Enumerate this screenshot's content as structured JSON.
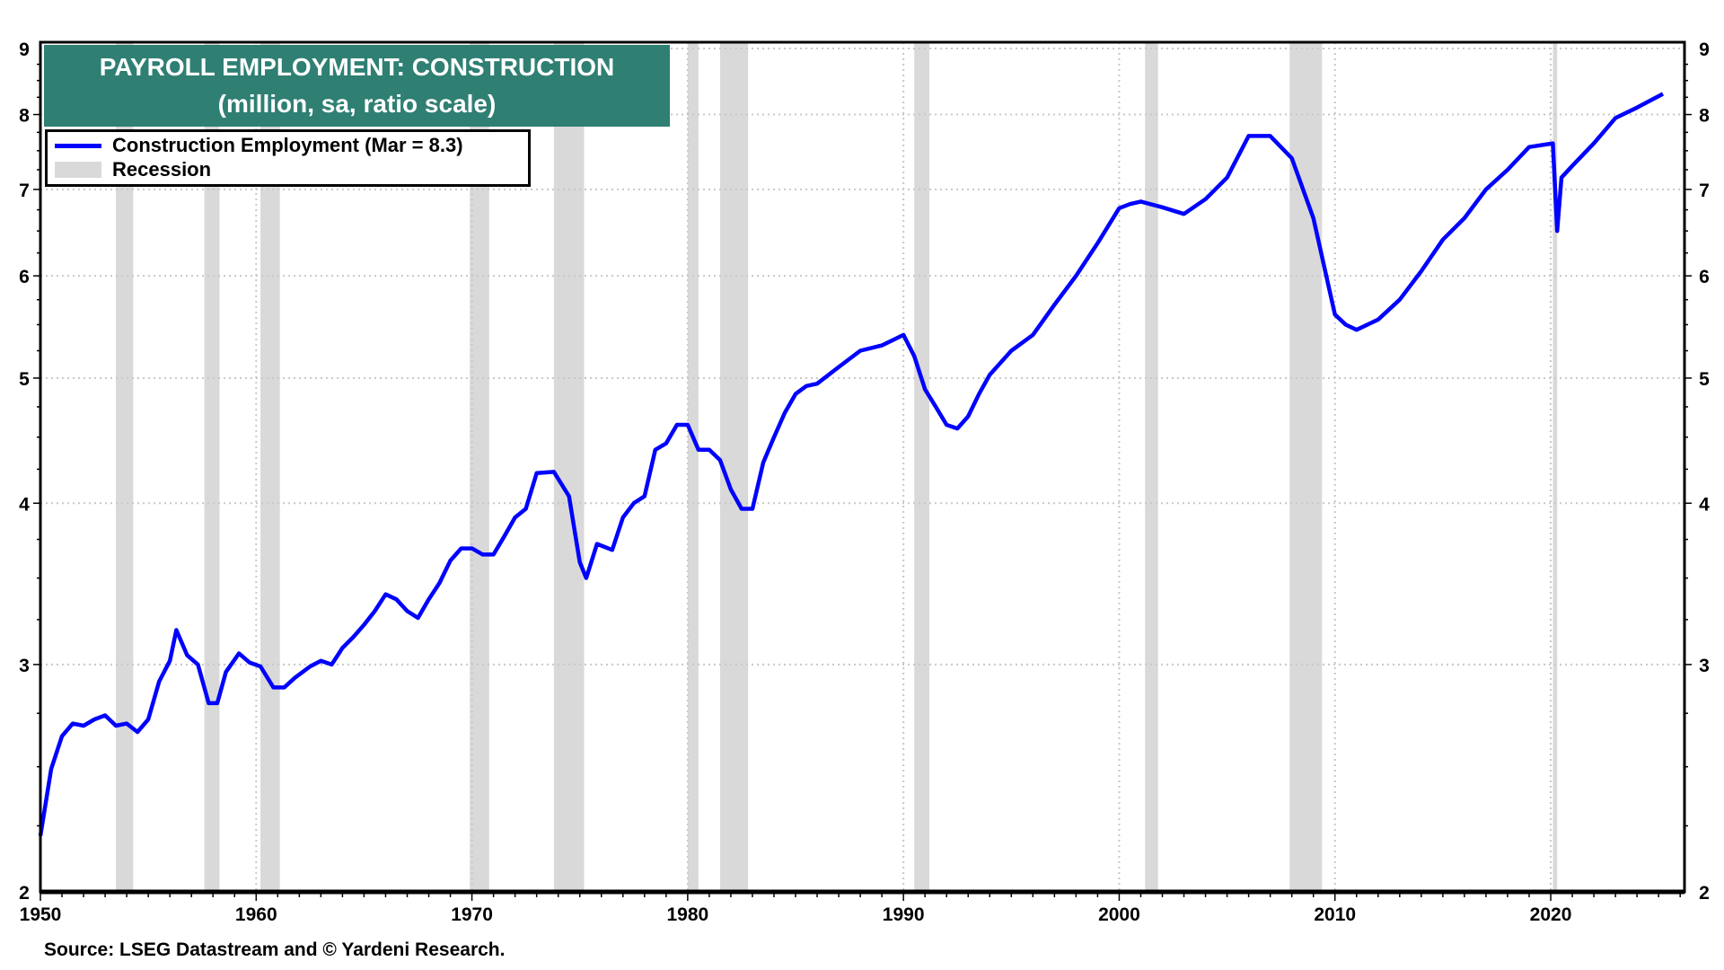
{
  "chart_data": {
    "type": "line",
    "title": "PAYROLL EMPLOYMENT: CONSTRUCTION",
    "subtitle": "(million, sa, ratio scale)",
    "xlabel": "",
    "ylabel": "",
    "yscale": "log",
    "ylim": [
      2,
      9
    ],
    "xlim": [
      1950,
      2026.2
    ],
    "y_ticks": [
      2,
      3,
      4,
      5,
      6,
      7,
      8,
      9
    ],
    "x_ticks": [
      1950,
      1960,
      1970,
      1980,
      1990,
      2000,
      2010,
      2020
    ],
    "grid": true,
    "legend_position": "top-left",
    "legend": [
      {
        "label": "Construction Employment (Mar = 8.3)",
        "color": "#0000ff",
        "kind": "line"
      },
      {
        "label": "Recession",
        "color": "#d9d9d9",
        "kind": "band"
      }
    ],
    "series": [
      {
        "name": "Construction Employment",
        "color": "#0000ff",
        "x": [
          1950.0,
          1950.5,
          1951.0,
          1951.5,
          1952.0,
          1952.5,
          1953.0,
          1953.5,
          1954.0,
          1954.5,
          1955.0,
          1955.5,
          1956.0,
          1956.3,
          1956.8,
          1957.3,
          1957.8,
          1958.2,
          1958.6,
          1959.2,
          1959.7,
          1960.2,
          1960.8,
          1961.3,
          1961.8,
          1962.5,
          1963.0,
          1963.5,
          1964.0,
          1964.5,
          1965.0,
          1965.5,
          1966.0,
          1966.5,
          1967.0,
          1967.5,
          1968.0,
          1968.5,
          1969.0,
          1969.5,
          1970.0,
          1970.5,
          1971.0,
          1971.5,
          1972.0,
          1972.5,
          1973.0,
          1973.8,
          1974.5,
          1975.0,
          1975.3,
          1975.8,
          1976.5,
          1977.0,
          1977.5,
          1978.0,
          1978.5,
          1979.0,
          1979.5,
          1980.0,
          1980.5,
          1981.0,
          1981.5,
          1982.0,
          1982.5,
          1983.0,
          1983.5,
          1984.0,
          1984.5,
          1985.0,
          1985.5,
          1986.0,
          1987.0,
          1988.0,
          1989.0,
          1990.0,
          1990.5,
          1991.0,
          1991.5,
          1992.0,
          1992.5,
          1993.0,
          1993.5,
          1994.0,
          1995.0,
          1996.0,
          1997.0,
          1998.0,
          1999.0,
          2000.0,
          2000.5,
          2001.0,
          2002.0,
          2003.0,
          2004.0,
          2005.0,
          2006.0,
          2006.5,
          2007.0,
          2008.0,
          2009.0,
          2010.0,
          2010.5,
          2011.0,
          2012.0,
          2013.0,
          2014.0,
          2015.0,
          2016.0,
          2017.0,
          2018.0,
          2019.0,
          2020.1,
          2020.3,
          2020.5,
          2021.0,
          2022.0,
          2023.0,
          2024.0,
          2025.2
        ],
        "values": [
          2.21,
          2.49,
          2.64,
          2.7,
          2.69,
          2.72,
          2.74,
          2.69,
          2.7,
          2.66,
          2.72,
          2.91,
          3.02,
          3.19,
          3.05,
          3.0,
          2.8,
          2.8,
          2.96,
          3.06,
          3.01,
          2.99,
          2.88,
          2.88,
          2.93,
          2.99,
          3.02,
          3.0,
          3.09,
          3.15,
          3.22,
          3.3,
          3.4,
          3.37,
          3.3,
          3.26,
          3.37,
          3.47,
          3.61,
          3.69,
          3.69,
          3.65,
          3.65,
          3.77,
          3.9,
          3.96,
          4.22,
          4.23,
          4.05,
          3.6,
          3.5,
          3.72,
          3.68,
          3.9,
          4.0,
          4.05,
          4.4,
          4.45,
          4.6,
          4.6,
          4.4,
          4.4,
          4.32,
          4.1,
          3.96,
          3.96,
          4.3,
          4.5,
          4.7,
          4.86,
          4.93,
          4.95,
          5.1,
          5.25,
          5.3,
          5.4,
          5.2,
          4.9,
          4.75,
          4.6,
          4.57,
          4.67,
          4.86,
          5.03,
          5.25,
          5.4,
          5.7,
          6.0,
          6.36,
          6.77,
          6.82,
          6.85,
          6.78,
          6.7,
          6.88,
          7.15,
          7.7,
          7.7,
          7.7,
          7.4,
          6.65,
          5.6,
          5.5,
          5.45,
          5.55,
          5.75,
          6.05,
          6.4,
          6.65,
          7.0,
          7.25,
          7.55,
          7.6,
          6.5,
          7.15,
          7.3,
          7.6,
          7.95,
          8.1,
          8.3
        ]
      }
    ],
    "recessions": [
      [
        1953.5,
        1954.3
      ],
      [
        1957.6,
        1958.3
      ],
      [
        1960.2,
        1961.1
      ],
      [
        1969.9,
        1970.8
      ],
      [
        1973.8,
        1975.2
      ],
      [
        1980.0,
        1980.5
      ],
      [
        1981.5,
        1982.8
      ],
      [
        1990.5,
        1991.2
      ],
      [
        2001.2,
        2001.8
      ],
      [
        2007.9,
        2009.4
      ],
      [
        2020.1,
        2020.3
      ]
    ]
  },
  "source": "Source: LSEG Datastream and © Yardeni Research."
}
